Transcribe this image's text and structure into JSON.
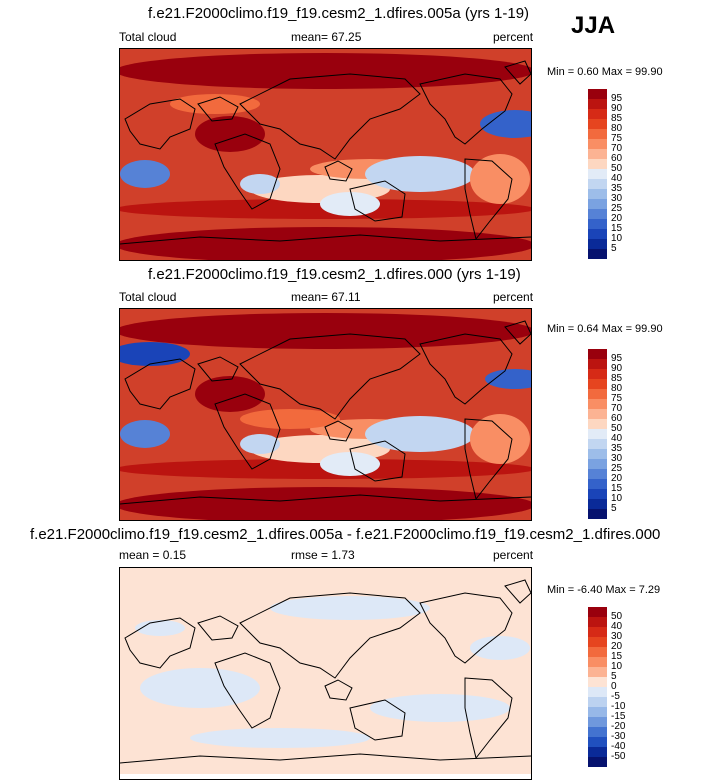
{
  "season": "JJA",
  "panels": [
    {
      "id": "test",
      "title": "f.e21.F2000climo.f19_f19.cesm2_1.dfires.005a (yrs 1-19)",
      "left_label": "Total cloud",
      "center_label": "mean=  67.25",
      "right_label": "percent",
      "minmax": "Min =   0.60 Max =  99.90",
      "colorbar_levels": [
        "95",
        "90",
        "85",
        "80",
        "75",
        "70",
        "60",
        "50",
        "40",
        "35",
        "30",
        "25",
        "20",
        "15",
        "10",
        "5"
      ],
      "colorbar_colors": [
        "#99000d",
        "#bb1410",
        "#d62a16",
        "#e6451f",
        "#f26a3d",
        "#f98e64",
        "#fcb393",
        "#fdd7c1",
        "#e2ebf7",
        "#c2d6f1",
        "#9dbde9",
        "#7aa2e1",
        "#5682d6",
        "#3462ca",
        "#1a44b8",
        "#0a2a98",
        "#06126e"
      ],
      "base_color": "#d0402a"
    },
    {
      "id": "ctrl",
      "title": "f.e21.F2000climo.f19_f19.cesm2_1.dfires.000 (yrs 1-19)",
      "left_label": "Total cloud",
      "center_label": "mean=  67.11",
      "right_label": "percent",
      "minmax": "Min =   0.64 Max =  99.90",
      "colorbar_levels": [
        "95",
        "90",
        "85",
        "80",
        "75",
        "70",
        "60",
        "50",
        "40",
        "35",
        "30",
        "25",
        "20",
        "15",
        "10",
        "5"
      ],
      "colorbar_colors": [
        "#99000d",
        "#bb1410",
        "#d62a16",
        "#e6451f",
        "#f26a3d",
        "#f98e64",
        "#fcb393",
        "#fdd7c1",
        "#e2ebf7",
        "#c2d6f1",
        "#9dbde9",
        "#7aa2e1",
        "#5682d6",
        "#3462ca",
        "#1a44b8",
        "#0a2a98",
        "#06126e"
      ],
      "base_color": "#d0402a"
    },
    {
      "id": "diff",
      "title": "f.e21.F2000climo.f19_f19.cesm2_1.dfires.005a - f.e21.F2000climo.f19_f19.cesm2_1.dfires.000",
      "left_label": "mean =   0.15",
      "center_label": "rmse =   1.73",
      "right_label": "percent",
      "minmax": "Min =  -6.40 Max =   7.29",
      "colorbar_levels": [
        "50",
        "40",
        "30",
        "20",
        "15",
        "10",
        "5",
        "0",
        "-5",
        "-10",
        "-15",
        "-20",
        "-30",
        "-40",
        "-50"
      ],
      "colorbar_colors": [
        "#99000d",
        "#bb1410",
        "#d62a16",
        "#e6451f",
        "#f26a3d",
        "#f98e64",
        "#fcb393",
        "#fde3d4",
        "#dde8f7",
        "#bcd2f0",
        "#97b8e8",
        "#6f98dd",
        "#4373d0",
        "#2050bf",
        "#0a2a98",
        "#06126e"
      ],
      "base_color": "#fde3d4"
    }
  ],
  "chart_data": {
    "type": "heatmap",
    "variable": "Total cloud",
    "units": "percent",
    "season": "JJA",
    "panels": [
      {
        "case": "f.e21.F2000climo.f19_f19.cesm2_1.dfires.005a (yrs 1-19)",
        "mean": 67.25,
        "min": 0.6,
        "max": 99.9,
        "levels": [
          5,
          10,
          15,
          20,
          25,
          30,
          35,
          40,
          50,
          60,
          70,
          75,
          80,
          85,
          90,
          95
        ]
      },
      {
        "case": "f.e21.F2000climo.f19_f19.cesm2_1.dfires.000 (yrs 1-19)",
        "mean": 67.11,
        "min": 0.64,
        "max": 99.9,
        "levels": [
          5,
          10,
          15,
          20,
          25,
          30,
          35,
          40,
          50,
          60,
          70,
          75,
          80,
          85,
          90,
          95
        ]
      },
      {
        "case": "f.e21.F2000climo.f19_f19.cesm2_1.dfires.005a - f.e21.F2000climo.f19_f19.cesm2_1.dfires.000",
        "mean": 0.15,
        "rmse": 1.73,
        "min": -6.4,
        "max": 7.29,
        "levels": [
          -50,
          -40,
          -30,
          -20,
          -15,
          -10,
          -5,
          0,
          5,
          10,
          15,
          20,
          30,
          40,
          50
        ]
      }
    ]
  }
}
